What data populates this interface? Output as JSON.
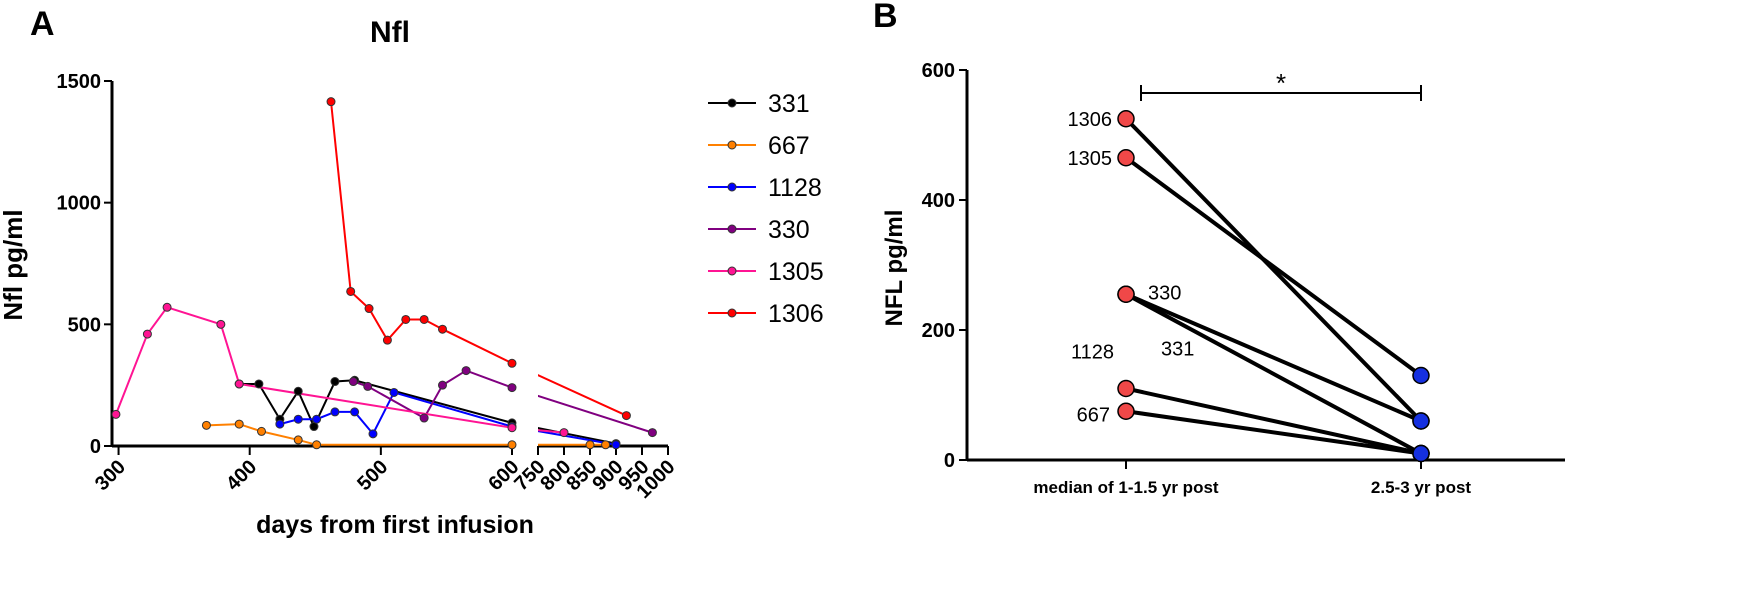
{
  "chart_data": [
    {
      "panel": "A",
      "type": "line",
      "title": "Nfl",
      "xlabel": "days from first infusion",
      "ylabel": "Nfl pg/ml",
      "ylim": [
        0,
        1500
      ],
      "y_ticks": [
        "0",
        "500",
        "1000",
        "1500"
      ],
      "x_segment_1": {
        "xlim": [
          295,
          600
        ],
        "ticks": [
          300,
          400,
          500,
          600
        ]
      },
      "x_segment_2": {
        "xlim": [
          750,
          1000
        ],
        "ticks": [
          750,
          800,
          850,
          900,
          950,
          1000
        ]
      },
      "legend_position": "right",
      "series": [
        {
          "name": "331",
          "color": "#000000",
          "points": [
            [
              392,
              255
            ],
            [
              407,
              255
            ],
            [
              423,
              110
            ],
            [
              437,
              225
            ],
            [
              449,
              80
            ],
            [
              465,
              265
            ],
            [
              480,
              270
            ],
            [
              600,
              95
            ],
            [
              900,
              10
            ]
          ]
        },
        {
          "name": "667",
          "color": "#ff8000",
          "points": [
            [
              367,
              85
            ],
            [
              392,
              90
            ],
            [
              409,
              60
            ],
            [
              437,
              25
            ],
            [
              451,
              5
            ],
            [
              600,
              5
            ],
            [
              850,
              5
            ],
            [
              880,
              5
            ]
          ]
        },
        {
          "name": "1128",
          "color": "#0000ff",
          "points": [
            [
              423,
              90
            ],
            [
              437,
              110
            ],
            [
              451,
              110
            ],
            [
              465,
              140
            ],
            [
              480,
              140
            ],
            [
              494,
              50
            ],
            [
              510,
              220
            ],
            [
              600,
              80
            ],
            [
              900,
              5
            ]
          ]
        },
        {
          "name": "330",
          "color": "#800080",
          "points": [
            [
              479,
              265
            ],
            [
              490,
              245
            ],
            [
              533,
              115
            ],
            [
              547,
              250
            ],
            [
              565,
              310
            ],
            [
              600,
              240
            ],
            [
              970,
              55
            ]
          ]
        },
        {
          "name": "1305",
          "color": "#ff1493",
          "points": [
            [
              298,
              130
            ],
            [
              322,
              460
            ],
            [
              337,
              570
            ],
            [
              378,
              500
            ],
            [
              392,
              255
            ],
            [
              600,
              75
            ],
            [
              800,
              55
            ]
          ]
        },
        {
          "name": "1306",
          "color": "#ff0000",
          "points": [
            [
              462,
              1415
            ],
            [
              477,
              635
            ],
            [
              491,
              565
            ],
            [
              505,
              435
            ],
            [
              519,
              520
            ],
            [
              533,
              520
            ],
            [
              547,
              480
            ],
            [
              600,
              340
            ],
            [
              920,
              125
            ]
          ]
        }
      ]
    },
    {
      "panel": "B",
      "type": "line",
      "title": "",
      "xlabel": "",
      "ylabel": "NFL pg/ml",
      "ylim": [
        0,
        600
      ],
      "y_ticks": [
        "0",
        "200",
        "400",
        "600"
      ],
      "categories": [
        "median of 1-1.5 yr post",
        "2.5-3 yr post"
      ],
      "significance": "*",
      "series": [
        {
          "name": "1306",
          "values": [
            525,
            60
          ]
        },
        {
          "name": "1305",
          "values": [
            465,
            130
          ]
        },
        {
          "name": "330",
          "values": [
            255,
            10
          ]
        },
        {
          "name": "331",
          "values": [
            255,
            60
          ]
        },
        {
          "name": "1128",
          "values": [
            110,
            10
          ]
        },
        {
          "name": "667",
          "values": [
            75,
            10
          ]
        }
      ],
      "marker_colors": {
        "before": "#f04848",
        "after": "#1530e0"
      }
    }
  ],
  "panel_labels": [
    "A",
    "B"
  ]
}
